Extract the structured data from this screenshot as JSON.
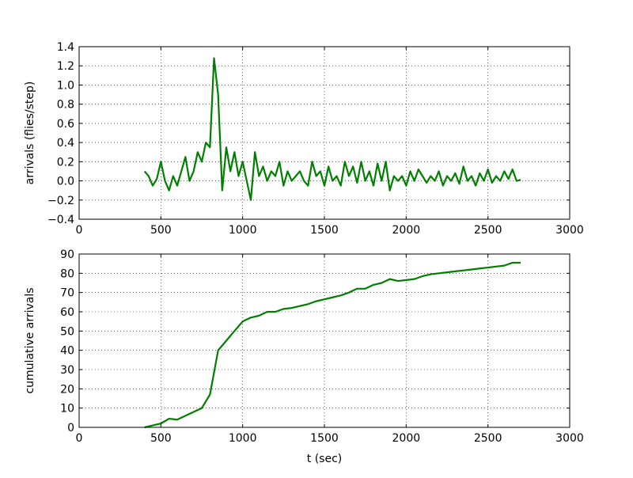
{
  "chart_data": [
    {
      "type": "line",
      "ylabel": "arrivals (flies/step)",
      "color": "#007f00",
      "grid": true,
      "xlim": [
        0,
        3000
      ],
      "xticks": [
        0,
        500,
        1000,
        1500,
        2000,
        2500,
        3000
      ],
      "ylim": [
        -0.4,
        1.4
      ],
      "yticks": [
        {
          "value": -0.4,
          "label": "−0.4"
        },
        {
          "value": -0.2,
          "label": "−0.2"
        },
        {
          "value": 0,
          "label": "0.0"
        },
        0.2,
        0.4,
        0.6,
        0.8,
        {
          "value": 1,
          "label": "1.0"
        },
        1.2,
        1.4
      ],
      "x": [
        400,
        425,
        450,
        475,
        500,
        525,
        550,
        575,
        600,
        625,
        650,
        675,
        700,
        725,
        750,
        775,
        800,
        825,
        850,
        875,
        900,
        925,
        950,
        975,
        1000,
        1025,
        1050,
        1075,
        1100,
        1125,
        1150,
        1175,
        1200,
        1225,
        1250,
        1275,
        1300,
        1325,
        1350,
        1375,
        1400,
        1425,
        1450,
        1475,
        1500,
        1525,
        1550,
        1575,
        1600,
        1625,
        1650,
        1675,
        1700,
        1725,
        1750,
        1775,
        1800,
        1825,
        1850,
        1875,
        1900,
        1925,
        1950,
        1975,
        2000,
        2025,
        2050,
        2075,
        2100,
        2125,
        2150,
        2175,
        2200,
        2225,
        2250,
        2275,
        2300,
        2325,
        2350,
        2375,
        2400,
        2425,
        2450,
        2475,
        2500,
        2525,
        2550,
        2575,
        2600,
        2625,
        2650,
        2675,
        2700
      ],
      "values": [
        0.1,
        0.05,
        -0.05,
        0.02,
        0.2,
        0.0,
        -0.1,
        0.05,
        -0.05,
        0.1,
        0.25,
        0.0,
        0.1,
        0.3,
        0.2,
        0.4,
        0.35,
        1.28,
        0.9,
        -0.1,
        0.35,
        0.1,
        0.3,
        0.05,
        0.2,
        0.0,
        -0.2,
        0.3,
        0.05,
        0.15,
        0.0,
        0.1,
        0.05,
        0.2,
        -0.05,
        0.1,
        0.0,
        0.05,
        0.1,
        0.0,
        -0.05,
        0.2,
        0.05,
        0.1,
        -0.05,
        0.15,
        0.0,
        0.05,
        -0.05,
        0.2,
        0.05,
        0.15,
        -0.02,
        0.2,
        0.0,
        0.1,
        -0.05,
        0.18,
        0.0,
        0.2,
        -0.1,
        0.05,
        0.0,
        0.05,
        -0.05,
        0.1,
        0.0,
        0.12,
        0.05,
        -0.02,
        0.05,
        0.0,
        0.1,
        -0.05,
        0.05,
        0.0,
        0.08,
        -0.03,
        0.15,
        0.0,
        0.05,
        -0.05,
        0.08,
        0.0,
        0.12,
        -0.02,
        0.05,
        0.0,
        0.1,
        0.02,
        0.12,
        0.0,
        0.01
      ]
    },
    {
      "type": "line",
      "ylabel": "cumulative arrivals",
      "xlabel": "t (sec)",
      "color": "#007f00",
      "grid": true,
      "xlim": [
        0,
        3000
      ],
      "xticks": [
        0,
        500,
        1000,
        1500,
        2000,
        2500,
        3000
      ],
      "ylim": [
        0,
        90
      ],
      "yticks": [
        0,
        10,
        20,
        30,
        40,
        50,
        60,
        70,
        80,
        90
      ],
      "x": [
        400,
        450,
        500,
        550,
        600,
        650,
        700,
        750,
        800,
        850,
        900,
        950,
        1000,
        1050,
        1100,
        1150,
        1200,
        1250,
        1300,
        1350,
        1400,
        1450,
        1500,
        1550,
        1600,
        1650,
        1700,
        1750,
        1800,
        1850,
        1900,
        1950,
        2000,
        2050,
        2100,
        2150,
        2200,
        2250,
        2300,
        2350,
        2400,
        2450,
        2500,
        2550,
        2600,
        2650,
        2700
      ],
      "values": [
        0,
        1,
        2,
        4.5,
        4,
        6,
        8,
        10,
        17,
        40,
        45,
        50,
        55,
        57,
        58,
        60,
        60,
        61.5,
        62,
        63,
        64,
        65.5,
        66.5,
        67.5,
        68.5,
        70,
        72,
        72,
        74,
        75,
        77,
        76,
        76.5,
        77,
        78.5,
        79.5,
        80,
        80.5,
        81,
        81.5,
        82,
        82.5,
        83,
        83.5,
        84,
        85.5,
        85.5
      ]
    }
  ]
}
